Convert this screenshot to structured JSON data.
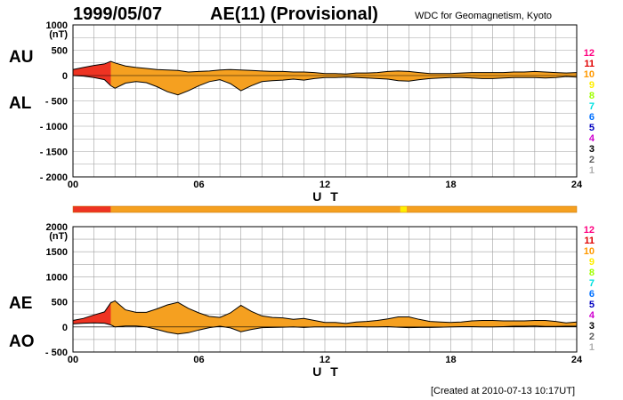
{
  "header": {
    "date": "1999/05/07",
    "title": "AE(11) (Provisional)",
    "source": "WDC for Geomagnetism, Kyoto"
  },
  "footer": {
    "created": "[Created at 2010-07-13 10:17UT]"
  },
  "colors": {
    "frame": "#000000",
    "grid": "#a0a0a0"
  },
  "chart_data": [
    {
      "type": "area",
      "panel": "top",
      "unit_label": "(nT)",
      "xlabel": "U T",
      "xlim": [
        0,
        24
      ],
      "ylim": [
        -2000,
        1000
      ],
      "xticks": [
        "00",
        "06",
        "12",
        "18",
        "24"
      ],
      "yticks": [
        "1000",
        "500",
        "0",
        "- 500",
        "- 1000",
        "- 1500",
        "- 2000"
      ],
      "side_labels": [
        "AU",
        "AL"
      ],
      "legend": [
        {
          "label": "12",
          "color": "#ff0080"
        },
        {
          "label": "11",
          "color": "#e00000"
        },
        {
          "label": "10",
          "color": "#ff9900"
        },
        {
          "label": "9",
          "color": "#ffee00"
        },
        {
          "label": "8",
          "color": "#a0ff00"
        },
        {
          "label": "7",
          "color": "#00e0e0"
        },
        {
          "label": "6",
          "color": "#0070ff"
        },
        {
          "label": "5",
          "color": "#0000c0"
        },
        {
          "label": "4",
          "color": "#d000d0"
        },
        {
          "label": "3",
          "color": "#000000"
        },
        {
          "label": "2",
          "color": "#606060"
        },
        {
          "label": "1",
          "color": "#b0b0b0"
        }
      ],
      "series": [
        {
          "name": "AU",
          "x": [
            0,
            0.5,
            1,
            1.5,
            1.8,
            2,
            2.5,
            3,
            3.5,
            4,
            4.5,
            5,
            5.5,
            6,
            6.5,
            7,
            7.5,
            8,
            8.5,
            9,
            9.5,
            10,
            10.5,
            11,
            11.5,
            12,
            12.5,
            13,
            13.5,
            14,
            14.5,
            15,
            15.5,
            16,
            16.5,
            17,
            17.5,
            18,
            18.5,
            19,
            19.5,
            20,
            20.5,
            21,
            21.5,
            22,
            22.5,
            23,
            23.5,
            24
          ],
          "values": [
            120,
            160,
            200,
            230,
            280,
            250,
            190,
            160,
            140,
            120,
            110,
            100,
            70,
            80,
            90,
            110,
            120,
            110,
            100,
            90,
            80,
            80,
            70,
            70,
            60,
            40,
            40,
            30,
            50,
            50,
            60,
            80,
            90,
            80,
            60,
            40,
            40,
            40,
            50,
            60,
            60,
            60,
            60,
            70,
            70,
            80,
            70,
            60,
            50,
            60
          ]
        },
        {
          "name": "AL",
          "x": [
            0,
            0.5,
            1,
            1.5,
            1.8,
            2,
            2.5,
            3,
            3.5,
            4,
            4.5,
            5,
            5.5,
            6,
            6.5,
            7,
            7.5,
            8,
            8.5,
            9,
            9.5,
            10,
            10.5,
            11,
            11.5,
            12,
            12.5,
            13,
            13.5,
            14,
            14.5,
            15,
            15.5,
            16,
            16.5,
            17,
            17.5,
            18,
            18.5,
            19,
            19.5,
            20,
            20.5,
            21,
            21.5,
            22,
            22.5,
            23,
            23.5,
            24
          ],
          "values": [
            0,
            -10,
            -40,
            -80,
            -200,
            -250,
            -150,
            -120,
            -140,
            -220,
            -320,
            -380,
            -300,
            -200,
            -120,
            -80,
            -160,
            -300,
            -200,
            -120,
            -100,
            -90,
            -70,
            -90,
            -60,
            -40,
            -40,
            -30,
            -40,
            -50,
            -60,
            -70,
            -100,
            -110,
            -80,
            -60,
            -50,
            -40,
            -40,
            -50,
            -60,
            -60,
            -50,
            -40,
            -40,
            -40,
            -50,
            -40,
            -20,
            -30
          ]
        }
      ]
    },
    {
      "type": "area",
      "panel": "bottom",
      "unit_label": "(nT)",
      "xlabel": "U T",
      "xlim": [
        0,
        24
      ],
      "ylim": [
        -500,
        2000
      ],
      "xticks": [
        "00",
        "06",
        "12",
        "18",
        "24"
      ],
      "yticks": [
        "2000",
        "1500",
        "1000",
        "500",
        "0",
        "- 500"
      ],
      "side_labels": [
        "AE",
        "AO"
      ],
      "legend": [
        {
          "label": "12",
          "color": "#ff0080"
        },
        {
          "label": "11",
          "color": "#e00000"
        },
        {
          "label": "10",
          "color": "#ff9900"
        },
        {
          "label": "9",
          "color": "#ffee00"
        },
        {
          "label": "8",
          "color": "#a0ff00"
        },
        {
          "label": "7",
          "color": "#00e0e0"
        },
        {
          "label": "6",
          "color": "#0070ff"
        },
        {
          "label": "5",
          "color": "#0000c0"
        },
        {
          "label": "4",
          "color": "#d000d0"
        },
        {
          "label": "3",
          "color": "#000000"
        },
        {
          "label": "2",
          "color": "#606060"
        },
        {
          "label": "1",
          "color": "#b0b0b0"
        }
      ],
      "series": [
        {
          "name": "AE",
          "x": [
            0,
            0.5,
            1,
            1.5,
            1.8,
            2,
            2.5,
            3,
            3.5,
            4,
            4.5,
            5,
            5.5,
            6,
            6.5,
            7,
            7.5,
            8,
            8.5,
            9,
            9.5,
            10,
            10.5,
            11,
            11.5,
            12,
            12.5,
            13,
            13.5,
            14,
            14.5,
            15,
            15.5,
            16,
            16.5,
            17,
            17.5,
            18,
            18.5,
            19,
            19.5,
            20,
            20.5,
            21,
            21.5,
            22,
            22.5,
            23,
            23.5,
            24
          ],
          "values": [
            130,
            170,
            240,
            300,
            480,
            520,
            340,
            290,
            290,
            360,
            440,
            490,
            370,
            280,
            210,
            190,
            280,
            430,
            310,
            220,
            190,
            180,
            150,
            170,
            130,
            90,
            90,
            70,
            100,
            110,
            130,
            160,
            200,
            200,
            150,
            110,
            100,
            90,
            100,
            120,
            130,
            130,
            120,
            120,
            120,
            130,
            130,
            110,
            80,
            100
          ]
        },
        {
          "name": "AO",
          "x": [
            0,
            0.5,
            1,
            1.5,
            1.8,
            2,
            2.5,
            3,
            3.5,
            4,
            4.5,
            5,
            5.5,
            6,
            6.5,
            7,
            7.5,
            8,
            8.5,
            9,
            9.5,
            10,
            10.5,
            11,
            11.5,
            12,
            12.5,
            13,
            13.5,
            14,
            14.5,
            15,
            15.5,
            16,
            16.5,
            17,
            17.5,
            18,
            18.5,
            19,
            19.5,
            20,
            20.5,
            21,
            21.5,
            22,
            22.5,
            23,
            23.5,
            24
          ],
          "values": [
            60,
            75,
            80,
            75,
            40,
            0,
            20,
            20,
            0,
            -50,
            -105,
            -140,
            -115,
            -60,
            -15,
            15,
            -20,
            -95,
            -50,
            -15,
            -10,
            -5,
            0,
            -10,
            0,
            0,
            0,
            0,
            5,
            0,
            0,
            5,
            -5,
            -15,
            -10,
            -10,
            -5,
            0,
            5,
            5,
            0,
            0,
            5,
            15,
            15,
            20,
            10,
            10,
            15,
            15
          ]
        }
      ]
    }
  ],
  "activity_bar": {
    "segments": [
      {
        "start": 0,
        "end": 1.8,
        "level": "11",
        "color": "#ee3322"
      },
      {
        "start": 1.8,
        "end": 15.6,
        "level": "10",
        "color": "#f5a020"
      },
      {
        "start": 15.6,
        "end": 15.9,
        "level": "9",
        "color": "#ffee00"
      },
      {
        "start": 15.9,
        "end": 24,
        "level": "10",
        "color": "#f5a020"
      }
    ]
  }
}
